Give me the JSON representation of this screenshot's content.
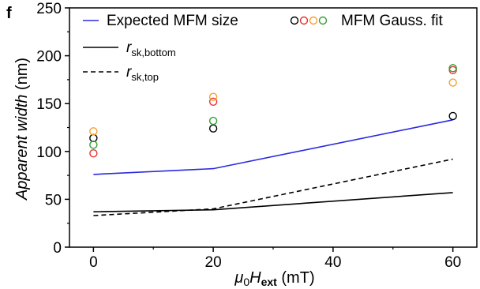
{
  "chart_data": {
    "type": "line",
    "panel_label": "f",
    "xlabel": {
      "mu": "μ",
      "zero": "0",
      "H": "H",
      "ext": "ext",
      "unit": " (mT)"
    },
    "ylabel": {
      "italic": "Apparent width",
      "unit": " (nm)"
    },
    "xlim": [
      -4,
      64
    ],
    "ylim": [
      0,
      250
    ],
    "xticks": [
      0,
      20,
      40,
      60
    ],
    "yticks": [
      0,
      50,
      100,
      150,
      200,
      250
    ],
    "series": [
      {
        "name": "Expected MFM size",
        "style": "line",
        "color": "#2a2adf",
        "dash": false,
        "x": [
          0,
          20,
          60
        ],
        "y": [
          76,
          82,
          133
        ]
      },
      {
        "name_r": "r",
        "name_sub": "sk,bottom",
        "style": "line",
        "color": "#000000",
        "dash": false,
        "x": [
          0,
          20,
          60
        ],
        "y": [
          37,
          39,
          57
        ]
      },
      {
        "name_r": "r",
        "name_sub": "sk,top",
        "style": "line",
        "color": "#000000",
        "dash": true,
        "x": [
          0,
          20,
          60
        ],
        "y": [
          33,
          40,
          92
        ]
      }
    ],
    "scatter_legend_label": "MFM Gauss. fit",
    "scatter_series": [
      {
        "color": "#000000",
        "x": [
          0,
          20,
          60
        ],
        "y": [
          114,
          124,
          137
        ]
      },
      {
        "color": "#e53030",
        "x": [
          0,
          20,
          60
        ],
        "y": [
          98,
          152,
          185
        ]
      },
      {
        "color": "#f5a030",
        "x": [
          0,
          20,
          60
        ],
        "y": [
          121,
          157,
          172
        ]
      },
      {
        "color": "#30a030",
        "x": [
          0,
          20,
          60
        ],
        "y": [
          107,
          132,
          187
        ]
      }
    ],
    "grid": false,
    "legend_position": "top"
  }
}
